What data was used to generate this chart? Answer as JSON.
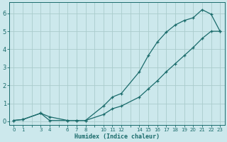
{
  "xlabel": "Humidex (Indice chaleur)",
  "background_color": "#cce8ec",
  "grid_color": "#aacccc",
  "line_color": "#1a6b6b",
  "xlim": [
    -0.5,
    23.5
  ],
  "ylim": [
    -0.2,
    6.6
  ],
  "xticks": [
    0,
    1,
    3,
    4,
    6,
    7,
    8,
    10,
    11,
    12,
    14,
    15,
    16,
    17,
    18,
    19,
    20,
    21,
    22,
    23
  ],
  "yticks": [
    0,
    1,
    2,
    3,
    4,
    5,
    6
  ],
  "curve1_x": [
    0,
    1,
    3,
    4,
    6,
    7,
    8,
    10,
    11,
    12,
    14,
    15,
    16,
    17,
    18,
    19,
    20,
    21,
    22,
    23
  ],
  "curve1_y": [
    0.05,
    0.1,
    0.45,
    0.25,
    0.05,
    0.05,
    0.05,
    0.85,
    1.35,
    1.55,
    2.75,
    3.65,
    4.4,
    4.95,
    5.35,
    5.6,
    5.75,
    6.2,
    5.95,
    5.0
  ],
  "curve2_x": [
    0,
    1,
    3,
    4,
    6,
    7,
    8,
    10,
    11,
    12,
    14,
    15,
    16,
    17,
    18,
    19,
    20,
    21,
    22,
    23
  ],
  "curve2_y": [
    0.05,
    0.1,
    0.45,
    0.05,
    0.05,
    0.05,
    0.05,
    0.38,
    0.7,
    0.85,
    1.35,
    1.8,
    2.25,
    2.75,
    3.2,
    3.65,
    4.1,
    4.6,
    5.0,
    5.0
  ]
}
